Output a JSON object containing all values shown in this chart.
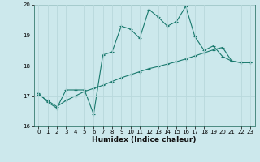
{
  "xlabel": "Humidex (Indice chaleur)",
  "ylabel": "",
  "bg_color": "#cce8ec",
  "grid_color": "#b8d8dc",
  "line_color": "#1a7a6e",
  "xlim": [
    -0.5,
    23.5
  ],
  "ylim": [
    16,
    20
  ],
  "xticks": [
    0,
    1,
    2,
    3,
    4,
    5,
    6,
    7,
    8,
    9,
    10,
    11,
    12,
    13,
    14,
    15,
    16,
    17,
    18,
    19,
    20,
    21,
    22,
    23
  ],
  "yticks": [
    16,
    17,
    18,
    19,
    20
  ],
  "curve1_x": [
    0,
    1,
    2,
    3,
    4,
    5,
    6,
    7,
    8,
    9,
    10,
    11,
    12,
    13,
    14,
    15,
    16,
    17,
    18,
    19,
    20,
    21,
    22,
    23
  ],
  "curve1_y": [
    17.1,
    16.8,
    16.6,
    17.2,
    17.2,
    17.2,
    16.4,
    18.35,
    18.45,
    19.3,
    19.2,
    18.9,
    19.85,
    19.6,
    19.3,
    19.45,
    19.95,
    18.95,
    18.5,
    18.65,
    18.3,
    18.15,
    18.1,
    18.1
  ],
  "curve2_x": [
    0,
    1,
    2,
    3,
    4,
    5,
    6,
    7,
    8,
    9,
    10,
    11,
    12,
    13,
    14,
    15,
    16,
    17,
    18,
    19,
    20,
    21,
    22,
    23
  ],
  "curve2_y": [
    17.05,
    16.85,
    16.65,
    16.85,
    17.0,
    17.15,
    17.25,
    17.35,
    17.48,
    17.6,
    17.7,
    17.8,
    17.9,
    17.97,
    18.05,
    18.13,
    18.22,
    18.32,
    18.42,
    18.52,
    18.6,
    18.15,
    18.1,
    18.1
  ]
}
